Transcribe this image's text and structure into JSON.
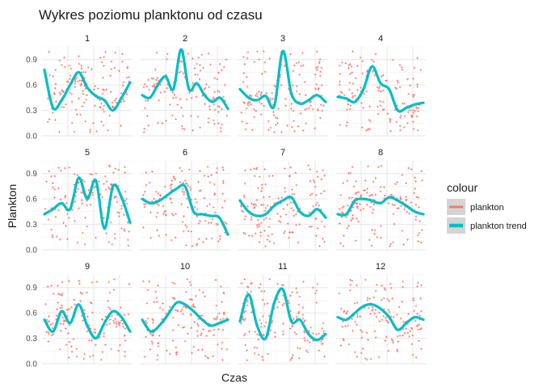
{
  "chart_data": {
    "type": "scatter",
    "title": "Wykres poziomu planktonu od czasu",
    "xlabel": "Czas",
    "ylabel": "Plankton",
    "ylim": [
      0,
      1.05
    ],
    "yticks": [
      "0.0",
      "0.3",
      "0.6",
      "0.9"
    ],
    "grid": true,
    "legend": {
      "title": "colour",
      "position": "right",
      "entries": [
        {
          "label": "plankton",
          "color": "#F8766D"
        },
        {
          "label": "plankton trend",
          "color": "#00BFC4"
        }
      ]
    },
    "panels": [
      {
        "label": "1",
        "trend": [
          0.78,
          0.33,
          0.42,
          0.6,
          0.75,
          0.57,
          0.47,
          0.42,
          0.3,
          0.45,
          0.63
        ]
      },
      {
        "label": "2",
        "trend": [
          0.48,
          0.45,
          0.6,
          0.7,
          0.55,
          1.02,
          0.55,
          0.62,
          0.48,
          0.4,
          0.45,
          0.32
        ]
      },
      {
        "label": "3",
        "trend": [
          0.55,
          0.45,
          0.42,
          0.47,
          0.35,
          1.0,
          0.5,
          0.38,
          0.42,
          0.48,
          0.4
        ]
      },
      {
        "label": "4",
        "trend": [
          0.46,
          0.44,
          0.4,
          0.55,
          0.82,
          0.62,
          0.55,
          0.3,
          0.33,
          0.37,
          0.39
        ]
      },
      {
        "label": "5",
        "trend": [
          0.42,
          0.48,
          0.55,
          0.48,
          0.85,
          0.6,
          0.82,
          0.25,
          0.75,
          0.62,
          0.32
        ]
      },
      {
        "label": "6",
        "trend": [
          0.6,
          0.55,
          0.58,
          0.65,
          0.72,
          0.75,
          0.45,
          0.42,
          0.4,
          0.38,
          0.18
        ]
      },
      {
        "label": "7",
        "trend": [
          0.58,
          0.45,
          0.4,
          0.42,
          0.52,
          0.58,
          0.62,
          0.45,
          0.4,
          0.48,
          0.38
        ]
      },
      {
        "label": "8",
        "trend": [
          0.42,
          0.42,
          0.58,
          0.6,
          0.58,
          0.55,
          0.62,
          0.58,
          0.52,
          0.45,
          0.42
        ]
      },
      {
        "label": "9",
        "trend": [
          0.52,
          0.38,
          0.62,
          0.48,
          0.7,
          0.45,
          0.3,
          0.48,
          0.62,
          0.55,
          0.38
        ]
      },
      {
        "label": "10",
        "trend": [
          0.52,
          0.38,
          0.45,
          0.58,
          0.72,
          0.7,
          0.62,
          0.52,
          0.45,
          0.48,
          0.52
        ]
      },
      {
        "label": "11",
        "trend": [
          0.5,
          0.82,
          0.45,
          0.3,
          0.72,
          0.88,
          0.5,
          0.52,
          0.35,
          0.28,
          0.35
        ]
      },
      {
        "label": "12",
        "trend": [
          0.55,
          0.52,
          0.6,
          0.68,
          0.7,
          0.65,
          0.55,
          0.4,
          0.48,
          0.55,
          0.52
        ]
      }
    ]
  }
}
